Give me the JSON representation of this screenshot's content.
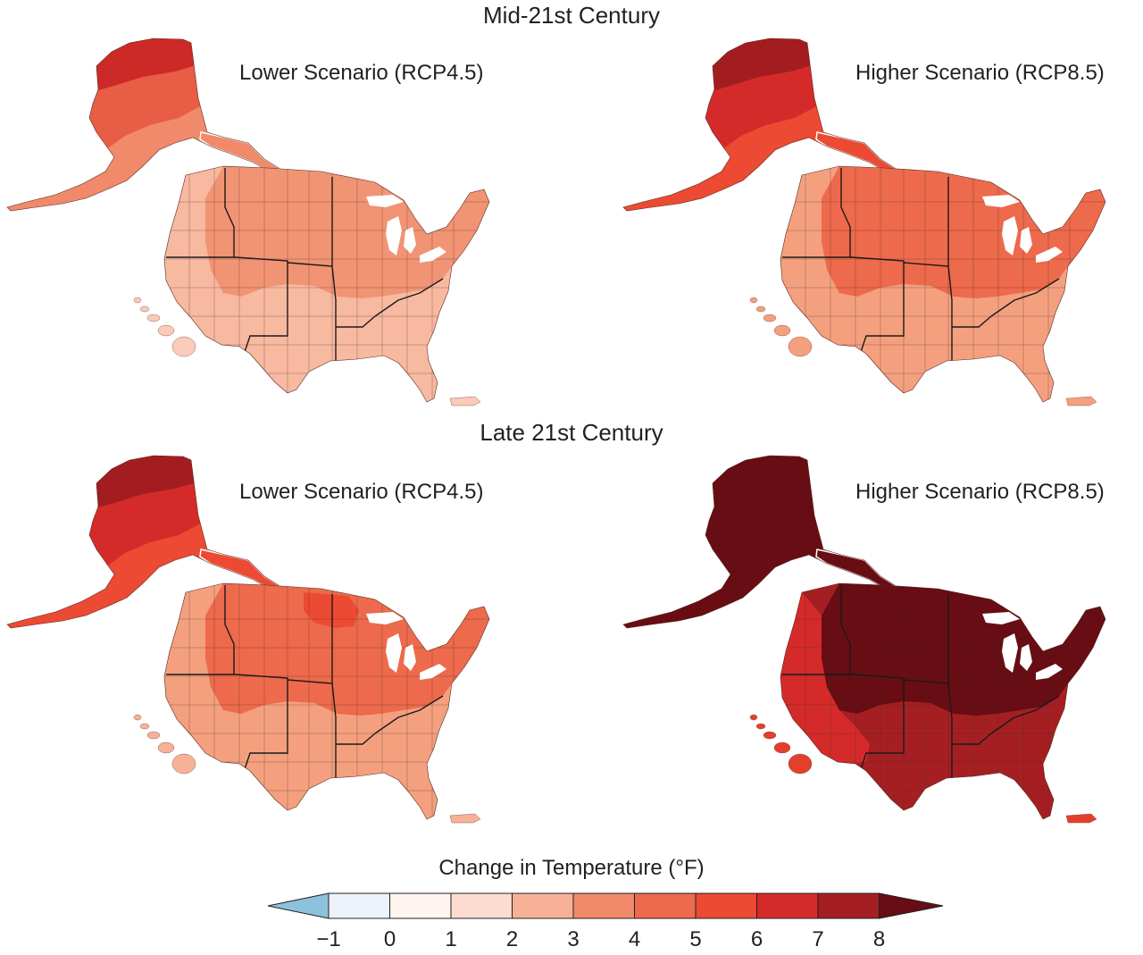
{
  "figure": {
    "top_section_title": "Mid-21st Century",
    "bottom_section_title": "Late 21st Century"
  },
  "panels": [
    {
      "period": "Mid-21st Century",
      "scenario": "Lower Scenario (RCP4.5)",
      "colors": {
        "alaska_north": "#cc2a27",
        "alaska_mid": "#e85d45",
        "alaska_south": "#f08a6a",
        "north": "#f19474",
        "south": "#f7b9a0",
        "west_coast": "#f7b9a0",
        "islands": "#f9cbb8",
        "hotspot": "#f19474"
      }
    },
    {
      "period": "Mid-21st Century",
      "scenario": "Higher Scenario (RCP8.5)",
      "colors": {
        "alaska_north": "#a31d20",
        "alaska_mid": "#d42b2a",
        "alaska_south": "#ec4a32",
        "north": "#ed6a4c",
        "south": "#f4a07f",
        "west_coast": "#f4a07f",
        "islands": "#f4a07f",
        "hotspot": "#ed6a4c"
      }
    },
    {
      "period": "Late 21st Century",
      "scenario": "Lower Scenario (RCP4.5)",
      "colors": {
        "alaska_north": "#a31d20",
        "alaska_mid": "#d42b2a",
        "alaska_south": "#ec4a32",
        "north": "#ed6a4c",
        "south": "#f4a07f",
        "west_coast": "#f4a07f",
        "islands": "#f6b197",
        "hotspot": "#ec4a32"
      }
    },
    {
      "period": "Late 21st Century",
      "scenario": "Higher Scenario (RCP8.5)",
      "colors": {
        "alaska_north": "#670d13",
        "alaska_mid": "#670d13",
        "alaska_south": "#670d13",
        "north": "#670d13",
        "south": "#a51f22",
        "west_coast": "#d42b2a",
        "islands": "#e2402d",
        "hotspot": "#670d13"
      }
    }
  ],
  "legend": {
    "title": "Change in Temperature (°F)",
    "ticks": [
      "−1",
      "0",
      "1",
      "2",
      "3",
      "4",
      "5",
      "6",
      "7",
      "8"
    ],
    "under_color": "#8ec1dc",
    "over_color": "#670d13",
    "bin_colors": [
      "#eef3fb",
      "#fff5f0",
      "#fcdcce",
      "#f6b197",
      "#f08a6a",
      "#ed6a4c",
      "#ec4a32",
      "#d42b2a",
      "#a51f22"
    ]
  }
}
